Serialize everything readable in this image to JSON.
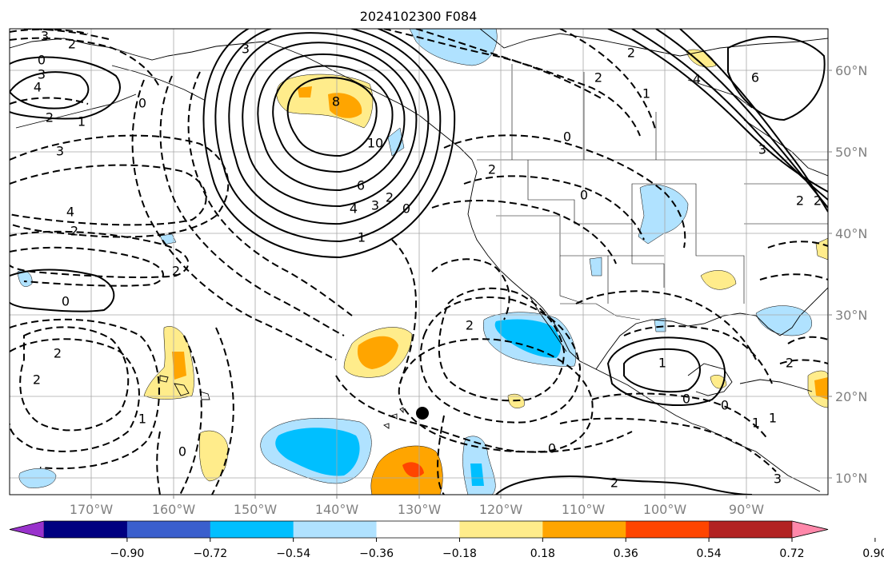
{
  "title": "2024102300 F084",
  "map": {
    "lon_ticks": [
      "170°W",
      "160°W",
      "150°W",
      "140°W",
      "130°W",
      "120°W",
      "110°W",
      "100°W",
      "90°W"
    ],
    "lat_ticks": [
      "60°N",
      "50°N",
      "40°N",
      "30°N",
      "20°N",
      "10°N"
    ],
    "contour_labels": [
      "3",
      "2",
      "0",
      "3",
      "4",
      "2",
      "1",
      "3",
      "0",
      "3",
      "8",
      "10",
      "6",
      "4",
      "3",
      "2",
      "0",
      "1",
      "4",
      "2",
      "2",
      "0",
      "2",
      "2",
      "1",
      "0",
      "2",
      "2",
      "0",
      "0",
      "1",
      "0",
      "1",
      "1",
      "0",
      "2",
      "3",
      "6",
      "4",
      "2",
      "2",
      "3",
      "1",
      "2",
      "2",
      "2",
      "0"
    ],
    "marker": "storm-center"
  },
  "colorbar": {
    "tick_labels": [
      "−0.90",
      "−0.72",
      "−0.54",
      "−0.36",
      "−0.18",
      "0.18",
      "0.36",
      "0.54",
      "0.72",
      "0.90"
    ],
    "colors": [
      "#9932cc",
      "#000080",
      "#3a5fcd",
      "#00bfff",
      "#b0e2ff",
      "#ffffff",
      "#ffec8b",
      "#ffa500",
      "#ff4500",
      "#b22222",
      "#ff88aa"
    ]
  }
}
